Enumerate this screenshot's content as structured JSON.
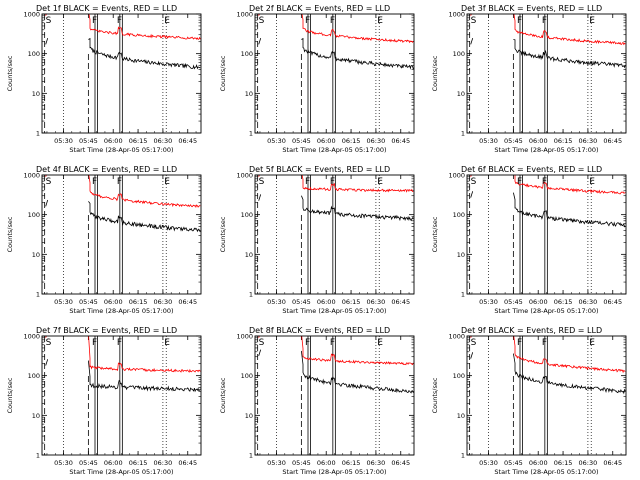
{
  "figure": {
    "xlabel": "Start Time (28-Apr-05 05:17:00)",
    "ylabel": "Counts/sec",
    "ytick_labels": [
      "1",
      "10",
      "100",
      "1000"
    ],
    "xtick_labels": [
      "05:30",
      "05:45",
      "06:00",
      "06:15",
      "06:30",
      "06:45"
    ],
    "colors": {
      "events": "#000000",
      "lld": "#ff0000",
      "frame": "#000000"
    },
    "marker_labels": [
      "S",
      "F",
      "F",
      "E"
    ]
  },
  "chart_data": [
    {
      "type": "line",
      "title": "Det 1f BLACK = Events, RED = LLD",
      "xlabel": "Start Time (28-Apr-05 05:17:00)",
      "ylabel": "Counts/sec",
      "yscale": "log",
      "ylim": [
        1,
        1000
      ],
      "xlim": [
        "05:17",
        "06:53"
      ],
      "xticks": [
        "05:30",
        "05:45",
        "06:00",
        "06:15",
        "06:30",
        "06:45"
      ],
      "markers": [
        {
          "label": "S",
          "time": "05:18"
        },
        {
          "label": "F",
          "time": "05:49"
        },
        {
          "label": "F",
          "time": "06:04"
        },
        {
          "label": "E",
          "time": "06:32"
        }
      ],
      "series": [
        {
          "name": "Events",
          "color": "#000000",
          "level_start": 150,
          "level_end": 45,
          "spike": 190
        },
        {
          "name": "LLD",
          "color": "#ff0000",
          "level_start": 450,
          "level_end": 240,
          "spike": 1000
        }
      ]
    },
    {
      "type": "line",
      "title": "Det 2f BLACK = Events, RED = LLD",
      "xlabel": "Start Time (28-Apr-05 05:17:00)",
      "ylabel": "Counts/sec",
      "yscale": "log",
      "ylim": [
        1,
        1000
      ],
      "xlim": [
        "05:17",
        "06:53"
      ],
      "xticks": [
        "05:30",
        "05:45",
        "06:00",
        "06:15",
        "06:30",
        "06:45"
      ],
      "markers": [
        {
          "label": "S",
          "time": "05:18"
        },
        {
          "label": "F",
          "time": "05:49"
        },
        {
          "label": "F",
          "time": "06:04"
        },
        {
          "label": "E",
          "time": "06:32"
        }
      ],
      "series": [
        {
          "name": "Events",
          "color": "#000000",
          "level_start": 150,
          "level_end": 45,
          "spike": 190
        },
        {
          "name": "LLD",
          "color": "#ff0000",
          "level_start": 450,
          "level_end": 200,
          "spike": 1000
        }
      ]
    },
    {
      "type": "line",
      "title": "Det 3f BLACK = Events, RED = LLD",
      "xlabel": "Start Time (28-Apr-05 05:17:00)",
      "ylabel": "Counts/sec",
      "yscale": "log",
      "ylim": [
        1,
        1000
      ],
      "xlim": [
        "05:17",
        "06:53"
      ],
      "xticks": [
        "05:30",
        "05:45",
        "06:00",
        "06:15",
        "06:30",
        "06:45"
      ],
      "markers": [
        {
          "label": "S",
          "time": "05:18"
        },
        {
          "label": "F",
          "time": "05:49"
        },
        {
          "label": "F",
          "time": "06:04"
        },
        {
          "label": "E",
          "time": "06:32"
        }
      ],
      "series": [
        {
          "name": "Events",
          "color": "#000000",
          "level_start": 140,
          "level_end": 50,
          "spike": 190
        },
        {
          "name": "LLD",
          "color": "#ff0000",
          "level_start": 420,
          "level_end": 180,
          "spike": 1000
        }
      ]
    },
    {
      "type": "line",
      "title": "Det 4f BLACK = Events, RED = LLD",
      "xlabel": "Start Time (28-Apr-05 05:17:00)",
      "ylabel": "Counts/sec",
      "yscale": "log",
      "ylim": [
        1,
        1000
      ],
      "xlim": [
        "05:17",
        "06:53"
      ],
      "xticks": [
        "05:30",
        "05:45",
        "06:00",
        "06:15",
        "06:30",
        "06:45"
      ],
      "markers": [
        {
          "label": "S",
          "time": "05:18"
        },
        {
          "label": "F",
          "time": "05:49"
        },
        {
          "label": "F",
          "time": "06:04"
        },
        {
          "label": "E",
          "time": "06:32"
        }
      ],
      "series": [
        {
          "name": "Events",
          "color": "#000000",
          "level_start": 120,
          "level_end": 40,
          "spike": 180
        },
        {
          "name": "LLD",
          "color": "#ff0000",
          "level_start": 400,
          "level_end": 160,
          "spike": 1000
        }
      ]
    },
    {
      "type": "line",
      "title": "Det 5f BLACK = Events, RED = LLD",
      "xlabel": "Start Time (28-Apr-05 05:17:00)",
      "ylabel": "Counts/sec",
      "yscale": "log",
      "ylim": [
        1,
        1000
      ],
      "xlim": [
        "05:17",
        "06:53"
      ],
      "xticks": [
        "05:30",
        "05:45",
        "06:00",
        "06:15",
        "06:30",
        "06:45"
      ],
      "markers": [
        {
          "label": "S",
          "time": "05:18"
        },
        {
          "label": "F",
          "time": "05:49"
        },
        {
          "label": "F",
          "time": "06:04"
        },
        {
          "label": "E",
          "time": "06:32"
        }
      ],
      "series": [
        {
          "name": "Events",
          "color": "#000000",
          "level_start": 150,
          "level_end": 80,
          "spike": 250
        },
        {
          "name": "LLD",
          "color": "#ff0000",
          "level_start": 480,
          "level_end": 400,
          "spike": 1000
        }
      ]
    },
    {
      "type": "line",
      "title": "Det 6f BLACK = Events, RED = LLD",
      "xlabel": "Start Time (28-Apr-05 05:17:00)",
      "ylabel": "Counts/sec",
      "yscale": "log",
      "ylim": [
        1,
        1000
      ],
      "xlim": [
        "05:17",
        "06:53"
      ],
      "xticks": [
        "05:30",
        "05:45",
        "06:00",
        "06:15",
        "06:30",
        "06:45"
      ],
      "markers": [
        {
          "label": "S",
          "time": "05:18"
        },
        {
          "label": "F",
          "time": "05:49"
        },
        {
          "label": "F",
          "time": "06:04"
        },
        {
          "label": "E",
          "time": "06:32"
        }
      ],
      "series": [
        {
          "name": "Events",
          "color": "#000000",
          "level_start": 150,
          "level_end": 55,
          "spike": 300
        },
        {
          "name": "LLD",
          "color": "#ff0000",
          "level_start": 700,
          "level_end": 350,
          "spike": 1000
        }
      ]
    },
    {
      "type": "line",
      "title": "Det 7f BLACK = Events, RED = LLD",
      "xlabel": "Start Time (28-Apr-05 05:17:00)",
      "ylabel": "Counts/sec",
      "yscale": "log",
      "ylim": [
        1,
        1000
      ],
      "xlim": [
        "05:17",
        "06:53"
      ],
      "xticks": [
        "05:30",
        "05:45",
        "06:00",
        "06:15",
        "06:30",
        "06:45"
      ],
      "markers": [
        {
          "label": "S",
          "time": "05:18"
        },
        {
          "label": "F",
          "time": "05:49"
        },
        {
          "label": "F",
          "time": "06:04"
        },
        {
          "label": "E",
          "time": "06:32"
        }
      ],
      "series": [
        {
          "name": "Events",
          "color": "#000000",
          "level_start": 60,
          "level_end": 45,
          "spike": 200
        },
        {
          "name": "LLD",
          "color": "#ff0000",
          "level_start": 170,
          "level_end": 130,
          "spike": 1000
        }
      ]
    },
    {
      "type": "line",
      "title": "Det 8f BLACK = Events, RED = LLD",
      "xlabel": "Start Time (28-Apr-05 05:17:00)",
      "ylabel": "Counts/sec",
      "yscale": "log",
      "ylim": [
        1,
        1000
      ],
      "xlim": [
        "05:17",
        "06:53"
      ],
      "xticks": [
        "05:30",
        "05:45",
        "06:00",
        "06:15",
        "06:30",
        "06:45"
      ],
      "markers": [
        {
          "label": "S",
          "time": "05:18"
        },
        {
          "label": "F",
          "time": "05:49"
        },
        {
          "label": "F",
          "time": "06:04"
        },
        {
          "label": "E",
          "time": "06:32"
        }
      ],
      "series": [
        {
          "name": "Events",
          "color": "#000000",
          "level_start": 120,
          "level_end": 40,
          "spike": 350
        },
        {
          "name": "LLD",
          "color": "#ff0000",
          "level_start": 300,
          "level_end": 200,
          "spike": 1000
        }
      ]
    },
    {
      "type": "line",
      "title": "Det 9f BLACK = Events, RED = LLD",
      "xlabel": "Start Time (28-Apr-05 05:17:00)",
      "ylabel": "Counts/sec",
      "yscale": "log",
      "ylim": [
        1,
        1000
      ],
      "xlim": [
        "05:17",
        "06:53"
      ],
      "xticks": [
        "05:30",
        "05:45",
        "06:00",
        "06:15",
        "06:30",
        "06:45"
      ],
      "markers": [
        {
          "label": "S",
          "time": "05:18"
        },
        {
          "label": "F",
          "time": "05:49"
        },
        {
          "label": "F",
          "time": "06:04"
        },
        {
          "label": "E",
          "time": "06:32"
        }
      ],
      "series": [
        {
          "name": "Events",
          "color": "#000000",
          "level_start": 130,
          "level_end": 40,
          "spike": 300
        },
        {
          "name": "LLD",
          "color": "#ff0000",
          "level_start": 350,
          "level_end": 130,
          "spike": 1000
        }
      ]
    }
  ]
}
